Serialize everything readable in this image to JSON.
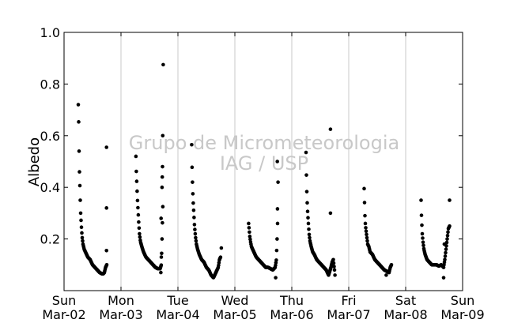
{
  "chart_data": {
    "type": "scatter",
    "title": "",
    "xlabel": "",
    "ylabel": "Albedo",
    "xlim": [
      "2014-03-02",
      "2014-03-09"
    ],
    "ylim": [
      0.0,
      1.0
    ],
    "yticks": [
      "0.2",
      "0.4",
      "0.6",
      "0.8",
      "1.0"
    ],
    "xticks": [
      {
        "day": "Sun",
        "date": "Mar-02"
      },
      {
        "day": "Mon",
        "date": "Mar-03"
      },
      {
        "day": "Tue",
        "date": "Mar-04"
      },
      {
        "day": "Wed",
        "date": "Mar-05"
      },
      {
        "day": "Thu",
        "date": "Mar-06"
      },
      {
        "day": "Fri",
        "date": "Mar-07"
      },
      {
        "day": "Sat",
        "date": "Mar-08"
      },
      {
        "day": "Sun",
        "date": "Mar-09"
      }
    ],
    "grid": "vertical lines at each day",
    "marker_color": "#000000",
    "watermark": [
      "Grupo de Micrometeorologia",
      "IAG / USP"
    ],
    "daily_series": [
      {
        "date": "2014-03-02",
        "start_hour": 6.0,
        "end_hour": 18.0,
        "hours": [
          6.0,
          6.2,
          6.4,
          6.6,
          6.8,
          7.0,
          7.3,
          7.6,
          8.0,
          8.5,
          9.0,
          10.0,
          11.0,
          12.0,
          13.0,
          14.0,
          15.0,
          16.0,
          16.5,
          17.0,
          17.5,
          18.0
        ],
        "albedo": [
          0.72,
          0.64,
          0.49,
          0.43,
          0.36,
          0.3,
          0.25,
          0.21,
          0.18,
          0.16,
          0.15,
          0.13,
          0.12,
          0.1,
          0.09,
          0.08,
          0.07,
          0.065,
          0.065,
          0.07,
          0.09,
          0.1
        ],
        "extra": [
          {
            "hour": 17.9,
            "albedo": 0.555
          },
          {
            "hour": 17.9,
            "albedo": 0.32
          },
          {
            "hour": 17.9,
            "albedo": 0.155
          }
        ]
      },
      {
        "date": "2014-03-03",
        "start_hour": 6.3,
        "end_hour": 17.7,
        "hours": [
          6.3,
          6.5,
          6.7,
          6.9,
          7.2,
          7.5,
          7.8,
          8.2,
          8.8,
          9.5,
          10.5,
          11.5,
          12.5,
          13.5,
          14.5,
          15.5,
          16.5,
          17.0,
          17.3,
          17.7
        ],
        "albedo": [
          0.52,
          0.45,
          0.41,
          0.36,
          0.31,
          0.26,
          0.22,
          0.19,
          0.17,
          0.15,
          0.13,
          0.12,
          0.11,
          0.1,
          0.09,
          0.085,
          0.085,
          0.1,
          0.2,
          0.35
        ],
        "extra": [
          {
            "hour": 17.8,
            "albedo": 0.875
          },
          {
            "hour": 17.6,
            "albedo": 0.6
          },
          {
            "hour": 17.5,
            "albedo": 0.48
          },
          {
            "hour": 17.4,
            "albedo": 0.44
          },
          {
            "hour": 17.3,
            "albedo": 0.4
          },
          {
            "hour": 16.9,
            "albedo": 0.28
          },
          {
            "hour": 17.0,
            "albedo": 0.13
          },
          {
            "hour": 16.8,
            "albedo": 0.07
          }
        ]
      },
      {
        "date": "2014-03-04",
        "start_hour": 5.8,
        "end_hour": 18.0,
        "hours": [
          5.8,
          6.0,
          6.2,
          6.4,
          6.7,
          7.0,
          7.4,
          7.8,
          8.3,
          9.0,
          10.0,
          11.0,
          12.0,
          13.0,
          14.0,
          15.0,
          16.0,
          17.0,
          17.5,
          18.0
        ],
        "albedo": [
          0.565,
          0.46,
          0.4,
          0.35,
          0.3,
          0.25,
          0.21,
          0.18,
          0.16,
          0.14,
          0.12,
          0.11,
          0.09,
          0.08,
          0.06,
          0.05,
          0.07,
          0.09,
          0.12,
          0.13
        ],
        "extra": [
          {
            "hour": 18.3,
            "albedo": 0.165
          }
        ]
      },
      {
        "date": "2014-03-05",
        "start_hour": 5.8,
        "end_hour": 18.0,
        "hours": [
          5.8,
          6.0,
          6.3,
          6.6,
          7.0,
          7.5,
          8.0,
          8.5,
          9.0,
          10.0,
          11.0,
          12.0,
          13.0,
          14.0,
          15.0,
          16.0,
          17.0,
          17.5,
          17.8,
          18.0
        ],
        "albedo": [
          0.26,
          0.24,
          0.21,
          0.19,
          0.17,
          0.16,
          0.15,
          0.14,
          0.13,
          0.12,
          0.11,
          0.1,
          0.09,
          0.09,
          0.085,
          0.08,
          0.09,
          0.12,
          0.2,
          0.34
        ],
        "extra": [
          {
            "hour": 17.9,
            "albedo": 0.5
          },
          {
            "hour": 18.2,
            "albedo": 0.42
          },
          {
            "hour": 18.0,
            "albedo": 0.26
          },
          {
            "hour": 17.2,
            "albedo": 0.05
          }
        ]
      },
      {
        "date": "2014-03-06",
        "start_hour": 6.0,
        "end_hour": 18.0,
        "hours": [
          6.0,
          6.2,
          6.4,
          6.7,
          7.0,
          7.3,
          7.7,
          8.2,
          8.8,
          9.5,
          10.5,
          11.5,
          12.5,
          13.5,
          14.5,
          15.5,
          16.5,
          17.0,
          17.5,
          18.0
        ],
        "albedo": [
          0.535,
          0.43,
          0.36,
          0.3,
          0.26,
          0.22,
          0.19,
          0.17,
          0.15,
          0.14,
          0.12,
          0.11,
          0.1,
          0.09,
          0.08,
          0.06,
          0.09,
          0.11,
          0.12,
          0.08
        ],
        "extra": [
          {
            "hour": 16.3,
            "albedo": 0.625
          },
          {
            "hour": 16.3,
            "albedo": 0.3
          },
          {
            "hour": 18.2,
            "albedo": 0.06
          }
        ]
      },
      {
        "date": "2014-03-07",
        "start_hour": 6.5,
        "end_hour": 18.0,
        "hours": [
          6.5,
          6.7,
          6.9,
          7.2,
          7.6,
          8.0,
          8.5,
          9.0,
          10.0,
          11.0,
          12.0,
          13.0,
          14.0,
          15.0,
          16.0,
          17.0,
          17.5,
          18.0
        ],
        "albedo": [
          0.395,
          0.33,
          0.27,
          0.24,
          0.21,
          0.18,
          0.17,
          0.15,
          0.14,
          0.12,
          0.11,
          0.1,
          0.09,
          0.08,
          0.075,
          0.07,
          0.09,
          0.1
        ],
        "extra": [
          {
            "hour": 15.8,
            "albedo": 0.06
          }
        ]
      },
      {
        "date": "2014-03-08",
        "start_hour": 6.5,
        "end_hour": 18.5,
        "hours": [
          6.5,
          6.7,
          7.0,
          7.3,
          7.7,
          8.2,
          9.0,
          10.0,
          11.0,
          12.0,
          13.0,
          14.0,
          15.0,
          16.0,
          16.5,
          17.0,
          17.5,
          18.0,
          18.5
        ],
        "albedo": [
          0.35,
          0.28,
          0.22,
          0.19,
          0.16,
          0.14,
          0.12,
          0.11,
          0.1,
          0.1,
          0.1,
          0.095,
          0.1,
          0.09,
          0.12,
          0.16,
          0.2,
          0.24,
          0.25
        ],
        "extra": [
          {
            "hour": 18.5,
            "albedo": 0.35
          },
          {
            "hour": 16.0,
            "albedo": 0.05
          },
          {
            "hour": 16.3,
            "albedo": 0.18
          }
        ]
      }
    ]
  }
}
